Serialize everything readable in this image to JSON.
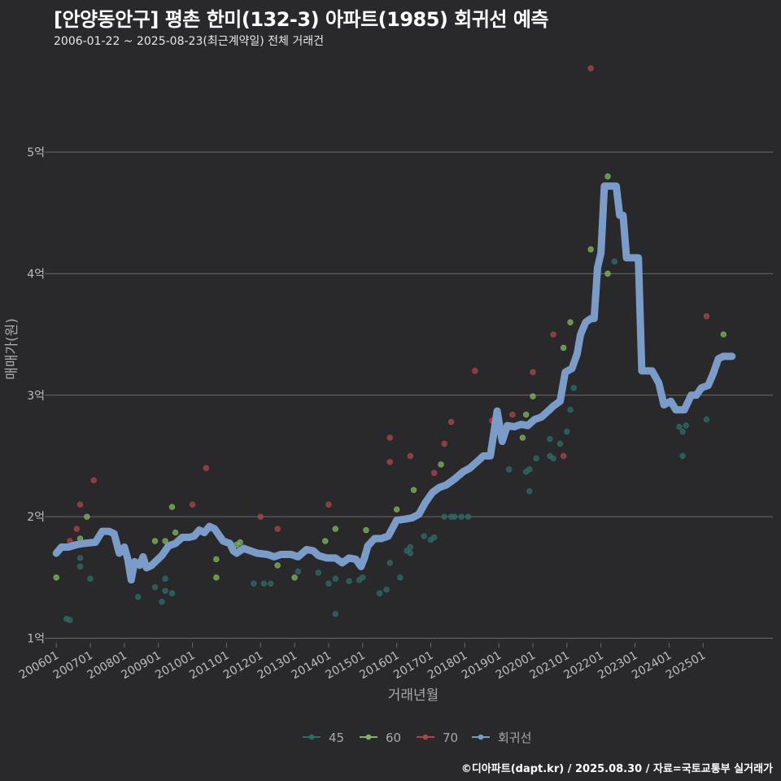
{
  "header": {
    "title": "[안양동안구] 평촌 한미(132-3) 아파트(1985) 회귀선 예측",
    "subtitle": "2006-01-22 ~ 2025-08-23(최근계약일) 전체 거래건"
  },
  "caption": "©디아파트(dapt.kr) / 2025.08.30 / 자료=국토교통부 실거래가",
  "colors": {
    "background": "#29282a",
    "grid": "#6a6a6a",
    "tick_text": "#bdbdbd",
    "series_45": "#2f6b67",
    "series_60": "#7fb560",
    "series_70": "#a8464b",
    "regression": "#7b9cc8"
  },
  "chart_data": {
    "type": "scatter",
    "title": "[안양동안구] 평촌 한미(132-3) 아파트(1985) 회귀선 예측",
    "xlabel": "거래년월",
    "ylabel": "매매가(원)",
    "x_unit": "decimal year",
    "y_unit": "억",
    "xlim": [
      2005.78,
      2027.05
    ],
    "ylim": [
      0.95,
      5.85
    ],
    "grid": true,
    "legend_position": "bottom",
    "y_ticks": [
      {
        "value": 1,
        "label": "1억"
      },
      {
        "value": 2,
        "label": "2억"
      },
      {
        "value": 3,
        "label": "3억"
      },
      {
        "value": 4,
        "label": "4억"
      },
      {
        "value": 5,
        "label": "5억"
      }
    ],
    "x_ticks": [
      {
        "value": 2006.0,
        "label": "200601"
      },
      {
        "value": 2007.0,
        "label": "200701"
      },
      {
        "value": 2008.0,
        "label": "200801"
      },
      {
        "value": 2009.0,
        "label": "200901"
      },
      {
        "value": 2010.0,
        "label": "201001"
      },
      {
        "value": 2011.0,
        "label": "201101"
      },
      {
        "value": 2012.0,
        "label": "201201"
      },
      {
        "value": 2013.0,
        "label": "201301"
      },
      {
        "value": 2014.0,
        "label": "201401"
      },
      {
        "value": 2015.0,
        "label": "201501"
      },
      {
        "value": 2016.0,
        "label": "201601"
      },
      {
        "value": 2017.0,
        "label": "201701"
      },
      {
        "value": 2018.0,
        "label": "201801"
      },
      {
        "value": 2019.0,
        "label": "201901"
      },
      {
        "value": 2020.0,
        "label": "202001"
      },
      {
        "value": 2021.0,
        "label": "202101"
      },
      {
        "value": 2022.0,
        "label": "202201"
      },
      {
        "value": 2023.0,
        "label": "202301"
      },
      {
        "value": 2024.0,
        "label": "202401"
      },
      {
        "value": 2025.0,
        "label": "202501"
      }
    ],
    "legend": [
      {
        "key": "series_45",
        "label": "45"
      },
      {
        "key": "series_60",
        "label": "60"
      },
      {
        "key": "series_70",
        "label": "70"
      },
      {
        "key": "regression",
        "label": "회귀선"
      }
    ],
    "series": [
      {
        "name": "45",
        "key": "series_45",
        "points": [
          [
            2006.3,
            1.16
          ],
          [
            2006.4,
            1.15
          ],
          [
            2006.7,
            1.66
          ],
          [
            2006.7,
            1.59
          ],
          [
            2007.0,
            1.49
          ],
          [
            2008.4,
            1.34
          ],
          [
            2008.9,
            1.42
          ],
          [
            2009.1,
            1.3
          ],
          [
            2009.2,
            1.49
          ],
          [
            2009.2,
            1.39
          ],
          [
            2009.4,
            1.37
          ],
          [
            2011.8,
            1.45
          ],
          [
            2012.1,
            1.45
          ],
          [
            2012.3,
            1.45
          ],
          [
            2013.1,
            1.55
          ],
          [
            2013.7,
            1.54
          ],
          [
            2014.0,
            1.45
          ],
          [
            2014.2,
            1.2
          ],
          [
            2014.2,
            1.49
          ],
          [
            2014.6,
            1.47
          ],
          [
            2014.9,
            1.48
          ],
          [
            2015.0,
            1.5
          ],
          [
            2015.5,
            1.37
          ],
          [
            2015.7,
            1.4
          ],
          [
            2015.8,
            1.62
          ],
          [
            2016.1,
            1.5
          ],
          [
            2016.3,
            1.72
          ],
          [
            2016.4,
            1.7
          ],
          [
            2016.4,
            1.75
          ],
          [
            2016.8,
            1.84
          ],
          [
            2017.0,
            1.81
          ],
          [
            2017.1,
            1.83
          ],
          [
            2017.4,
            2.0
          ],
          [
            2017.6,
            2.0
          ],
          [
            2017.7,
            2.0
          ],
          [
            2017.9,
            2.0
          ],
          [
            2018.1,
            2.0
          ],
          [
            2019.3,
            2.39
          ],
          [
            2019.8,
            2.37
          ],
          [
            2019.9,
            2.21
          ],
          [
            2019.9,
            2.39
          ],
          [
            2020.1,
            2.48
          ],
          [
            2020.5,
            2.64
          ],
          [
            2020.5,
            2.5
          ],
          [
            2020.6,
            2.48
          ],
          [
            2020.8,
            2.6
          ],
          [
            2021.0,
            2.7
          ],
          [
            2021.1,
            2.88
          ],
          [
            2021.2,
            3.06
          ],
          [
            2022.4,
            4.1
          ],
          [
            2024.3,
            2.74
          ],
          [
            2024.4,
            2.7
          ],
          [
            2024.4,
            2.5
          ],
          [
            2024.5,
            2.75
          ],
          [
            2025.1,
            2.8
          ]
        ]
      },
      {
        "name": "60",
        "key": "series_60",
        "points": [
          [
            2006.0,
            1.5
          ],
          [
            2006.7,
            1.82
          ],
          [
            2006.9,
            2.0
          ],
          [
            2008.9,
            1.8
          ],
          [
            2009.2,
            1.8
          ],
          [
            2009.4,
            2.08
          ],
          [
            2009.5,
            1.87
          ],
          [
            2010.7,
            1.65
          ],
          [
            2010.7,
            1.5
          ],
          [
            2011.3,
            1.77
          ],
          [
            2011.4,
            1.79
          ],
          [
            2012.5,
            1.6
          ],
          [
            2013.0,
            1.5
          ],
          [
            2013.9,
            1.8
          ],
          [
            2014.2,
            1.9
          ],
          [
            2015.1,
            1.89
          ],
          [
            2016.0,
            2.06
          ],
          [
            2016.5,
            2.22
          ],
          [
            2017.3,
            2.43
          ],
          [
            2019.7,
            2.65
          ],
          [
            2019.8,
            2.84
          ],
          [
            2020.0,
            2.99
          ],
          [
            2020.9,
            3.39
          ],
          [
            2021.1,
            3.6
          ],
          [
            2021.7,
            4.2
          ],
          [
            2022.2,
            4.8
          ],
          [
            2022.2,
            4.0
          ],
          [
            2025.6,
            3.5
          ]
        ]
      },
      {
        "name": "70",
        "key": "series_70",
        "points": [
          [
            2006.4,
            1.8
          ],
          [
            2006.6,
            1.9
          ],
          [
            2006.7,
            2.1
          ],
          [
            2007.1,
            2.3
          ],
          [
            2010.0,
            2.1
          ],
          [
            2010.4,
            2.4
          ],
          [
            2012.0,
            2.0
          ],
          [
            2012.5,
            1.9
          ],
          [
            2014.0,
            2.1
          ],
          [
            2015.8,
            2.65
          ],
          [
            2015.8,
            2.45
          ],
          [
            2016.4,
            2.5
          ],
          [
            2017.1,
            2.36
          ],
          [
            2017.4,
            2.6
          ],
          [
            2017.6,
            2.78
          ],
          [
            2018.3,
            3.2
          ],
          [
            2018.8,
            2.79
          ],
          [
            2019.4,
            2.84
          ],
          [
            2020.0,
            3.19
          ],
          [
            2020.6,
            3.5
          ],
          [
            2020.9,
            2.5
          ],
          [
            2021.7,
            5.69
          ],
          [
            2025.1,
            3.65
          ]
        ]
      }
    ],
    "regression": [
      [
        2006.0,
        1.7
      ],
      [
        2006.15,
        1.75
      ],
      [
        2006.35,
        1.75
      ],
      [
        2006.6,
        1.77
      ],
      [
        2006.8,
        1.78
      ],
      [
        2007.15,
        1.79
      ],
      [
        2007.35,
        1.88
      ],
      [
        2007.55,
        1.88
      ],
      [
        2007.7,
        1.86
      ],
      [
        2007.85,
        1.7
      ],
      [
        2008.0,
        1.75
      ],
      [
        2008.1,
        1.65
      ],
      [
        2008.2,
        1.48
      ],
      [
        2008.3,
        1.63
      ],
      [
        2008.45,
        1.6
      ],
      [
        2008.55,
        1.67
      ],
      [
        2008.65,
        1.58
      ],
      [
        2008.8,
        1.6
      ],
      [
        2008.95,
        1.64
      ],
      [
        2009.1,
        1.68
      ],
      [
        2009.3,
        1.76
      ],
      [
        2009.5,
        1.78
      ],
      [
        2009.7,
        1.83
      ],
      [
        2009.9,
        1.83
      ],
      [
        2010.05,
        1.84
      ],
      [
        2010.2,
        1.89
      ],
      [
        2010.35,
        1.87
      ],
      [
        2010.5,
        1.92
      ],
      [
        2010.65,
        1.9
      ],
      [
        2010.75,
        1.86
      ],
      [
        2010.9,
        1.8
      ],
      [
        2011.1,
        1.78
      ],
      [
        2011.2,
        1.72
      ],
      [
        2011.3,
        1.7
      ],
      [
        2011.5,
        1.74
      ],
      [
        2011.7,
        1.72
      ],
      [
        2011.9,
        1.7
      ],
      [
        2012.2,
        1.69
      ],
      [
        2012.4,
        1.67
      ],
      [
        2012.6,
        1.69
      ],
      [
        2012.9,
        1.69
      ],
      [
        2013.1,
        1.67
      ],
      [
        2013.35,
        1.73
      ],
      [
        2013.55,
        1.72
      ],
      [
        2013.7,
        1.68
      ],
      [
        2013.95,
        1.66
      ],
      [
        2014.2,
        1.66
      ],
      [
        2014.4,
        1.62
      ],
      [
        2014.6,
        1.66
      ],
      [
        2014.8,
        1.65
      ],
      [
        2014.95,
        1.59
      ],
      [
        2015.05,
        1.66
      ],
      [
        2015.15,
        1.76
      ],
      [
        2015.35,
        1.82
      ],
      [
        2015.55,
        1.82
      ],
      [
        2015.75,
        1.84
      ],
      [
        2016.0,
        1.97
      ],
      [
        2016.25,
        1.98
      ],
      [
        2016.45,
        1.99
      ],
      [
        2016.65,
        2.02
      ],
      [
        2016.85,
        2.12
      ],
      [
        2017.05,
        2.2
      ],
      [
        2017.25,
        2.24
      ],
      [
        2017.45,
        2.26
      ],
      [
        2017.7,
        2.31
      ],
      [
        2017.95,
        2.37
      ],
      [
        2018.15,
        2.4
      ],
      [
        2018.35,
        2.45
      ],
      [
        2018.55,
        2.5
      ],
      [
        2018.75,
        2.5
      ],
      [
        2018.95,
        2.87
      ],
      [
        2019.1,
        2.62
      ],
      [
        2019.25,
        2.75
      ],
      [
        2019.45,
        2.74
      ],
      [
        2019.65,
        2.76
      ],
      [
        2019.85,
        2.75
      ],
      [
        2020.05,
        2.8
      ],
      [
        2020.25,
        2.82
      ],
      [
        2020.45,
        2.87
      ],
      [
        2020.6,
        2.91
      ],
      [
        2020.8,
        2.95
      ],
      [
        2020.95,
        3.19
      ],
      [
        2021.15,
        3.22
      ],
      [
        2021.3,
        3.34
      ],
      [
        2021.4,
        3.5
      ],
      [
        2021.55,
        3.6
      ],
      [
        2021.7,
        3.63
      ],
      [
        2021.8,
        3.63
      ],
      [
        2021.9,
        4.05
      ],
      [
        2022.0,
        4.17
      ],
      [
        2022.1,
        4.72
      ],
      [
        2022.25,
        4.72
      ],
      [
        2022.45,
        4.72
      ],
      [
        2022.55,
        4.48
      ],
      [
        2022.65,
        4.48
      ],
      [
        2022.75,
        4.13
      ],
      [
        2022.9,
        4.13
      ],
      [
        2023.1,
        4.13
      ],
      [
        2023.2,
        3.2
      ],
      [
        2023.5,
        3.2
      ],
      [
        2023.7,
        3.1
      ],
      [
        2023.85,
        2.92
      ],
      [
        2024.05,
        2.95
      ],
      [
        2024.2,
        2.88
      ],
      [
        2024.45,
        2.88
      ],
      [
        2024.65,
        3.0
      ],
      [
        2024.8,
        3.0
      ],
      [
        2024.95,
        3.06
      ],
      [
        2025.15,
        3.08
      ],
      [
        2025.3,
        3.18
      ],
      [
        2025.45,
        3.3
      ],
      [
        2025.6,
        3.32
      ],
      [
        2025.85,
        3.32
      ]
    ]
  }
}
